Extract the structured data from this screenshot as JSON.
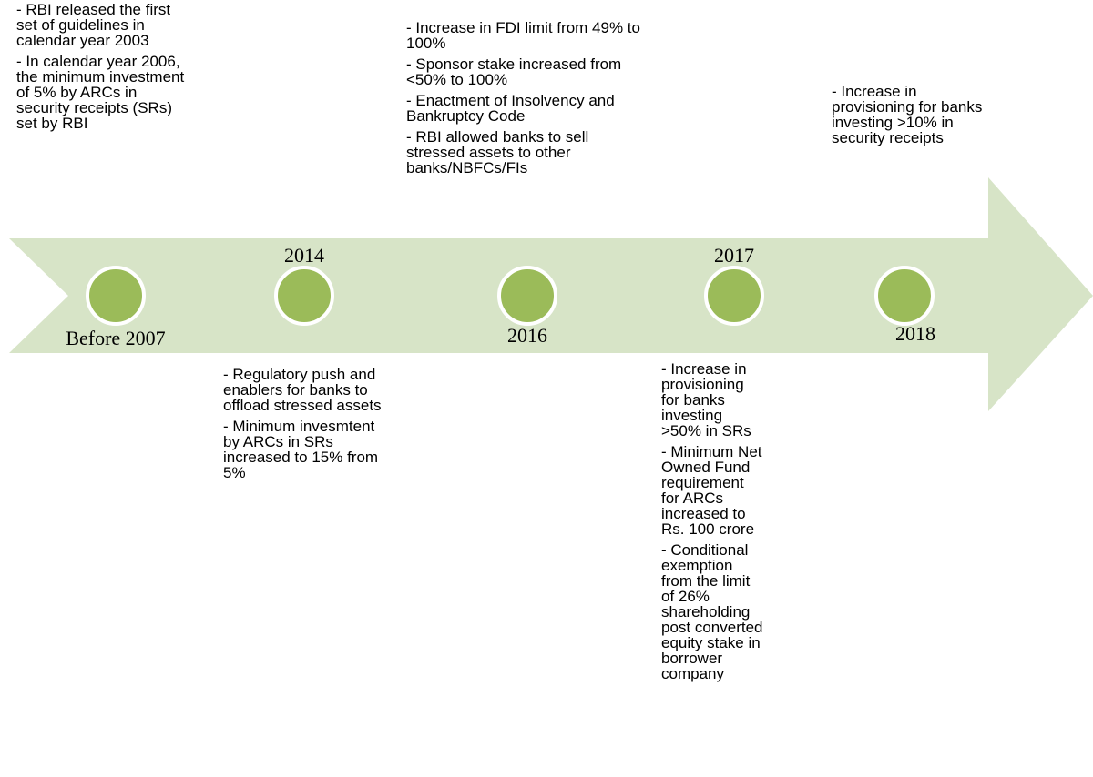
{
  "milestones": [
    {
      "label": "Before 2007",
      "notes": [
        "- RBI released the first set of guidelines in calendar year 2003",
        "- In calendar year 2006, the minimum investment of 5% by ARCs in security receipts (SRs) set by RBI"
      ]
    },
    {
      "label": "2014",
      "notes": [
        "- Regulatory push and enablers for banks to offload stressed assets",
        "- Minimum invesmtent by ARCs in SRs increased to 15% from 5%"
      ]
    },
    {
      "label": "2016",
      "notes": [
        "- Increase in FDI limit from 49% to 100%",
        "- Sponsor stake increased from <50% to 100%",
        "- Enactment of Insolvency and Bankruptcy Code",
        "- RBI allowed banks to sell stressed assets to other banks/NBFCs/FIs"
      ]
    },
    {
      "label": "2017",
      "notes": [
        "- Increase in provisioning for banks investing >50% in SRs",
        "- Minimum Net Owned Fund requirement for ARCs increased to Rs. 100 crore",
        "- Conditional exemption from the limit of 26% shareholding post converted equity stake in borrower company"
      ]
    },
    {
      "label": "2018",
      "notes": [
        "- Increase in provisioning for banks investing >10% in security receipts"
      ]
    }
  ]
}
